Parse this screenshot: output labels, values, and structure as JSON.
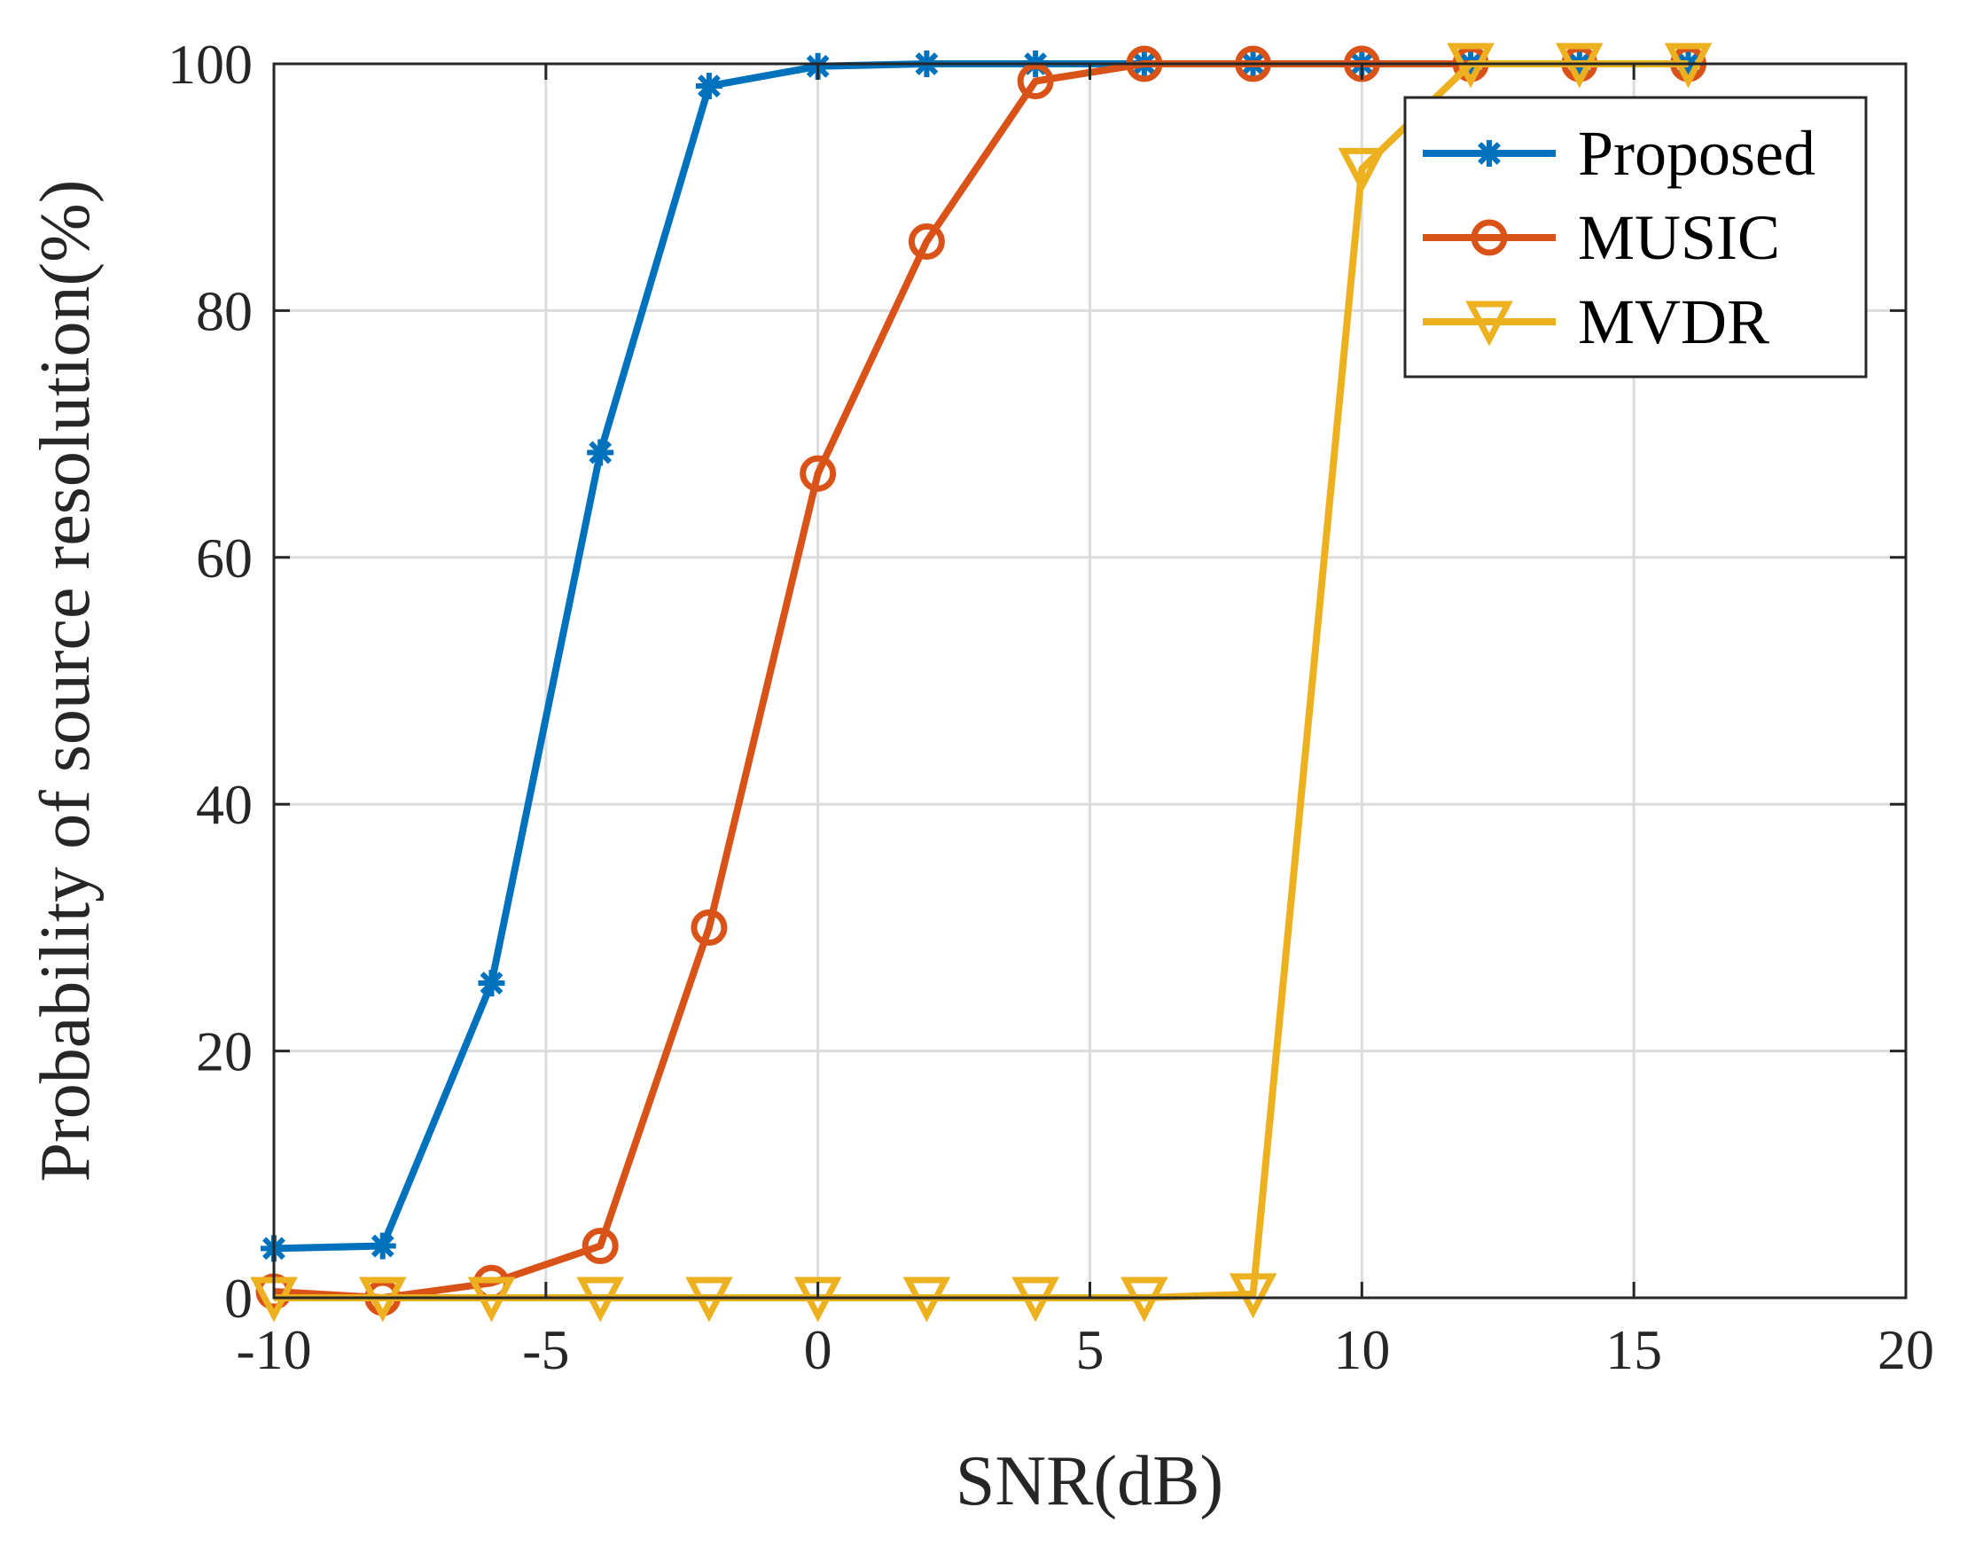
{
  "chart_data": {
    "type": "line",
    "title": "",
    "xlabel": "SNR(dB)",
    "ylabel": "Probability of source resolution(%)",
    "xlim": [
      -10,
      20
    ],
    "ylim": [
      0,
      100
    ],
    "xticks": [
      -10,
      -5,
      0,
      5,
      10,
      15,
      20
    ],
    "yticks": [
      0,
      20,
      40,
      60,
      80,
      100
    ],
    "grid": true,
    "legend_position": "top-right",
    "series": [
      {
        "name": "Proposed",
        "color": "#0072BD",
        "marker": "asterisk",
        "x": [
          -10,
          -8,
          -6,
          -4,
          -2,
          0,
          2,
          4,
          6,
          8,
          10,
          12,
          14,
          16
        ],
        "y": [
          4,
          4.2,
          25.5,
          68.5,
          98.2,
          99.8,
          100,
          100,
          100,
          100,
          100,
          100,
          100,
          100
        ]
      },
      {
        "name": "MUSIC",
        "color": "#D95319",
        "marker": "circle",
        "x": [
          -10,
          -8,
          -6,
          -4,
          -2,
          0,
          2,
          4,
          6,
          8,
          10,
          12,
          14,
          16
        ],
        "y": [
          0.5,
          0,
          1.2,
          4.2,
          30,
          66.8,
          85.6,
          98.6,
          100,
          100,
          100,
          100,
          100,
          100
        ]
      },
      {
        "name": "MVDR",
        "color": "#EDB120",
        "marker": "triangle-down",
        "x": [
          -10,
          -8,
          -6,
          -4,
          -2,
          0,
          2,
          4,
          6,
          8,
          10,
          12,
          14,
          16
        ],
        "y": [
          0,
          0,
          0,
          0,
          0,
          0,
          0,
          0,
          0,
          0.3,
          91.5,
          100,
          100,
          100
        ]
      }
    ]
  }
}
